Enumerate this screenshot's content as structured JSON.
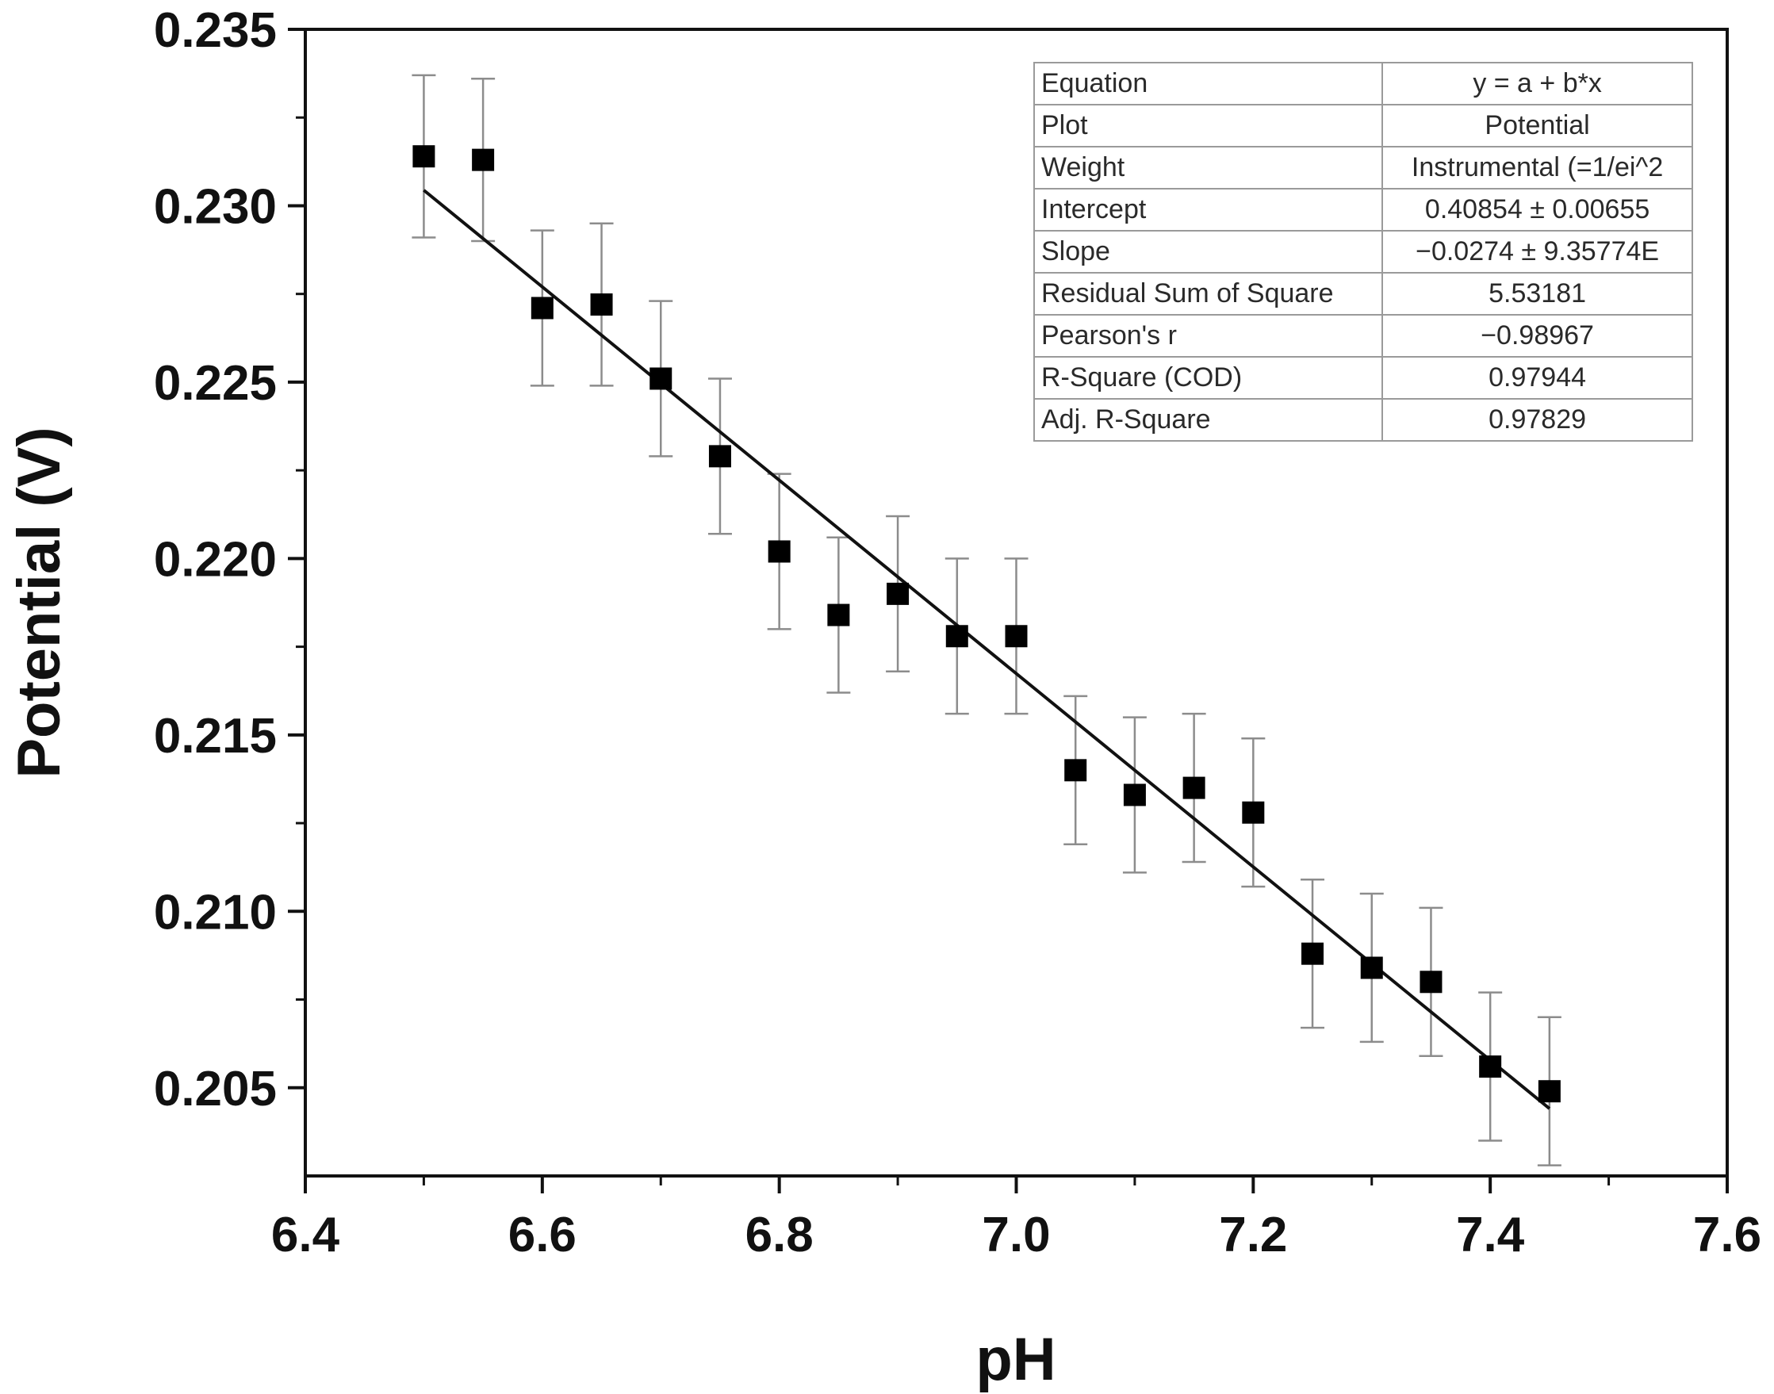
{
  "chart_data": {
    "type": "scatter",
    "title": "",
    "xlabel": "pH",
    "ylabel": "Potential (V)",
    "xlim": [
      6.4,
      7.6
    ],
    "ylim": [
      0.2025,
      0.235
    ],
    "x_ticks": [
      "6.4",
      "6.6",
      "6.8",
      "7.0",
      "7.2",
      "7.4",
      "7.6"
    ],
    "y_ticks": [
      "0.205",
      "0.210",
      "0.215",
      "0.220",
      "0.225",
      "0.230",
      "0.235"
    ],
    "series": [
      {
        "name": "Potential",
        "x": [
          6.5,
          6.55,
          6.6,
          6.65,
          6.7,
          6.75,
          6.8,
          6.85,
          6.9,
          6.95,
          7.0,
          7.05,
          7.1,
          7.15,
          7.2,
          7.25,
          7.3,
          7.35,
          7.4,
          7.45
        ],
        "y": [
          0.2314,
          0.2313,
          0.2271,
          0.2272,
          0.2251,
          0.2229,
          0.2202,
          0.2184,
          0.219,
          0.2178,
          0.2178,
          0.214,
          0.2133,
          0.2135,
          0.2128,
          0.2088,
          0.2084,
          0.208,
          0.2056,
          0.2049
        ],
        "error": [
          0.0023,
          0.0023,
          0.0022,
          0.0023,
          0.0022,
          0.0022,
          0.0022,
          0.0022,
          0.0022,
          0.0022,
          0.0022,
          0.0021,
          0.0022,
          0.0021,
          0.0021,
          0.0021,
          0.0021,
          0.0021,
          0.0021,
          0.0021
        ]
      }
    ],
    "fit": {
      "name": "Linear Fit",
      "intercept": 0.40854,
      "slope": -0.0274,
      "x_range": [
        6.5,
        7.45
      ]
    },
    "stats_table": [
      {
        "label": "Equation",
        "value": "y = a + b*x"
      },
      {
        "label": "Plot",
        "value": "Potential"
      },
      {
        "label": "Weight",
        "value": "Instrumental (=1/ei^2"
      },
      {
        "label": "Intercept",
        "value": "0.40854 ± 0.00655"
      },
      {
        "label": "Slope",
        "value": "−0.0274 ± 9.35774E"
      },
      {
        "label": "Residual Sum of Square",
        "value": "5.53181"
      },
      {
        "label": "Pearson's r",
        "value": "−0.98967"
      },
      {
        "label": "R-Square (COD)",
        "value": "0.97944"
      },
      {
        "label": "Adj. R-Square",
        "value": "0.97829"
      }
    ]
  }
}
